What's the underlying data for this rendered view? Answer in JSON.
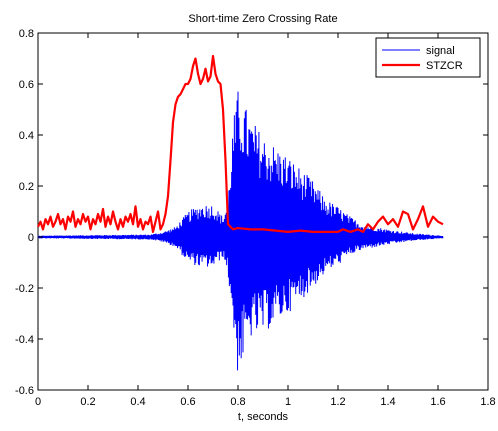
{
  "chart_data": {
    "type": "line",
    "title": "Short-time Zero Crossing Rate",
    "xlabel": "t, seconds",
    "ylabel": "",
    "xlim": [
      0,
      1.8
    ],
    "ylim": [
      -0.6,
      0.8
    ],
    "x_ticks": [
      0,
      0.2,
      0.4,
      0.6,
      0.8,
      1,
      1.2,
      1.4,
      1.6,
      1.8
    ],
    "y_ticks": [
      -0.6,
      -0.4,
      -0.2,
      0,
      0.2,
      0.4,
      0.6,
      0.8
    ],
    "x_tick_labels": [
      "0",
      "0.2",
      "0.4",
      "0.6",
      "0.8",
      "1",
      "1.2",
      "1.4",
      "1.6",
      "1.8"
    ],
    "y_tick_labels": [
      "-0.6",
      "-0.4",
      "-0.2",
      "0",
      "0.2",
      "0.4",
      "0.6",
      "0.8"
    ],
    "grid": false,
    "legend_position": "top-right",
    "series": [
      {
        "name": "signal",
        "color": "#0000ff",
        "style": "dense oscillating waveform (symmetric about 0)",
        "envelope": {
          "x": [
            0,
            0.45,
            0.5,
            0.55,
            0.6,
            0.65,
            0.7,
            0.74,
            0.76,
            0.78,
            0.8,
            0.85,
            0.9,
            0.95,
            1.0,
            1.05,
            1.1,
            1.15,
            1.2,
            1.25,
            1.3,
            1.4,
            1.5,
            1.62
          ],
          "upper": [
            0.005,
            0.01,
            0.02,
            0.04,
            0.1,
            0.13,
            0.13,
            0.08,
            0.15,
            0.45,
            0.58,
            0.47,
            0.4,
            0.36,
            0.32,
            0.27,
            0.22,
            0.15,
            0.12,
            0.08,
            0.05,
            0.03,
            0.015,
            0.005
          ],
          "lower": [
            -0.005,
            -0.01,
            -0.02,
            -0.04,
            -0.1,
            -0.12,
            -0.12,
            -0.08,
            -0.15,
            -0.35,
            -0.55,
            -0.4,
            -0.38,
            -0.34,
            -0.3,
            -0.25,
            -0.2,
            -0.14,
            -0.11,
            -0.07,
            -0.05,
            -0.03,
            -0.015,
            -0.005
          ]
        }
      },
      {
        "name": "STZCR",
        "color": "#ff0000",
        "x": [
          0.0,
          0.01,
          0.02,
          0.03,
          0.04,
          0.05,
          0.06,
          0.07,
          0.08,
          0.09,
          0.1,
          0.11,
          0.12,
          0.13,
          0.14,
          0.15,
          0.16,
          0.17,
          0.18,
          0.19,
          0.2,
          0.21,
          0.22,
          0.23,
          0.24,
          0.25,
          0.26,
          0.27,
          0.28,
          0.29,
          0.3,
          0.31,
          0.32,
          0.33,
          0.34,
          0.35,
          0.36,
          0.37,
          0.38,
          0.39,
          0.4,
          0.41,
          0.42,
          0.43,
          0.44,
          0.45,
          0.46,
          0.47,
          0.48,
          0.49,
          0.5,
          0.51,
          0.52,
          0.53,
          0.54,
          0.55,
          0.56,
          0.57,
          0.58,
          0.59,
          0.6,
          0.61,
          0.62,
          0.63,
          0.64,
          0.65,
          0.66,
          0.67,
          0.68,
          0.69,
          0.7,
          0.71,
          0.72,
          0.73,
          0.74,
          0.75,
          0.76,
          0.77,
          0.78,
          0.8,
          0.85,
          0.9,
          0.95,
          1.0,
          1.05,
          1.1,
          1.15,
          1.2,
          1.22,
          1.25,
          1.28,
          1.3,
          1.32,
          1.34,
          1.36,
          1.38,
          1.4,
          1.42,
          1.44,
          1.46,
          1.48,
          1.5,
          1.52,
          1.54,
          1.56,
          1.58,
          1.6,
          1.62
        ],
        "y": [
          0.04,
          0.06,
          0.03,
          0.07,
          0.05,
          0.08,
          0.04,
          0.06,
          0.09,
          0.05,
          0.07,
          0.03,
          0.08,
          0.06,
          0.1,
          0.04,
          0.07,
          0.05,
          0.09,
          0.06,
          0.08,
          0.03,
          0.07,
          0.05,
          0.09,
          0.06,
          0.11,
          0.04,
          0.08,
          0.05,
          0.1,
          0.06,
          0.03,
          0.07,
          0.04,
          0.08,
          0.06,
          0.09,
          0.05,
          0.12,
          0.04,
          0.07,
          0.03,
          0.06,
          0.05,
          0.08,
          0.02,
          0.06,
          0.1,
          0.03,
          0.05,
          0.09,
          0.16,
          0.3,
          0.45,
          0.52,
          0.55,
          0.56,
          0.58,
          0.6,
          0.6,
          0.62,
          0.67,
          0.7,
          0.64,
          0.6,
          0.62,
          0.66,
          0.61,
          0.63,
          0.71,
          0.64,
          0.61,
          0.6,
          0.5,
          0.3,
          0.05,
          0.04,
          0.03,
          0.035,
          0.03,
          0.03,
          0.025,
          0.02,
          0.025,
          0.02,
          0.02,
          0.02,
          0.03,
          0.02,
          0.03,
          0.02,
          0.05,
          0.03,
          0.06,
          0.08,
          0.05,
          0.07,
          0.04,
          0.1,
          0.09,
          0.03,
          0.07,
          0.12,
          0.04,
          0.08,
          0.06,
          0.05
        ]
      }
    ]
  }
}
